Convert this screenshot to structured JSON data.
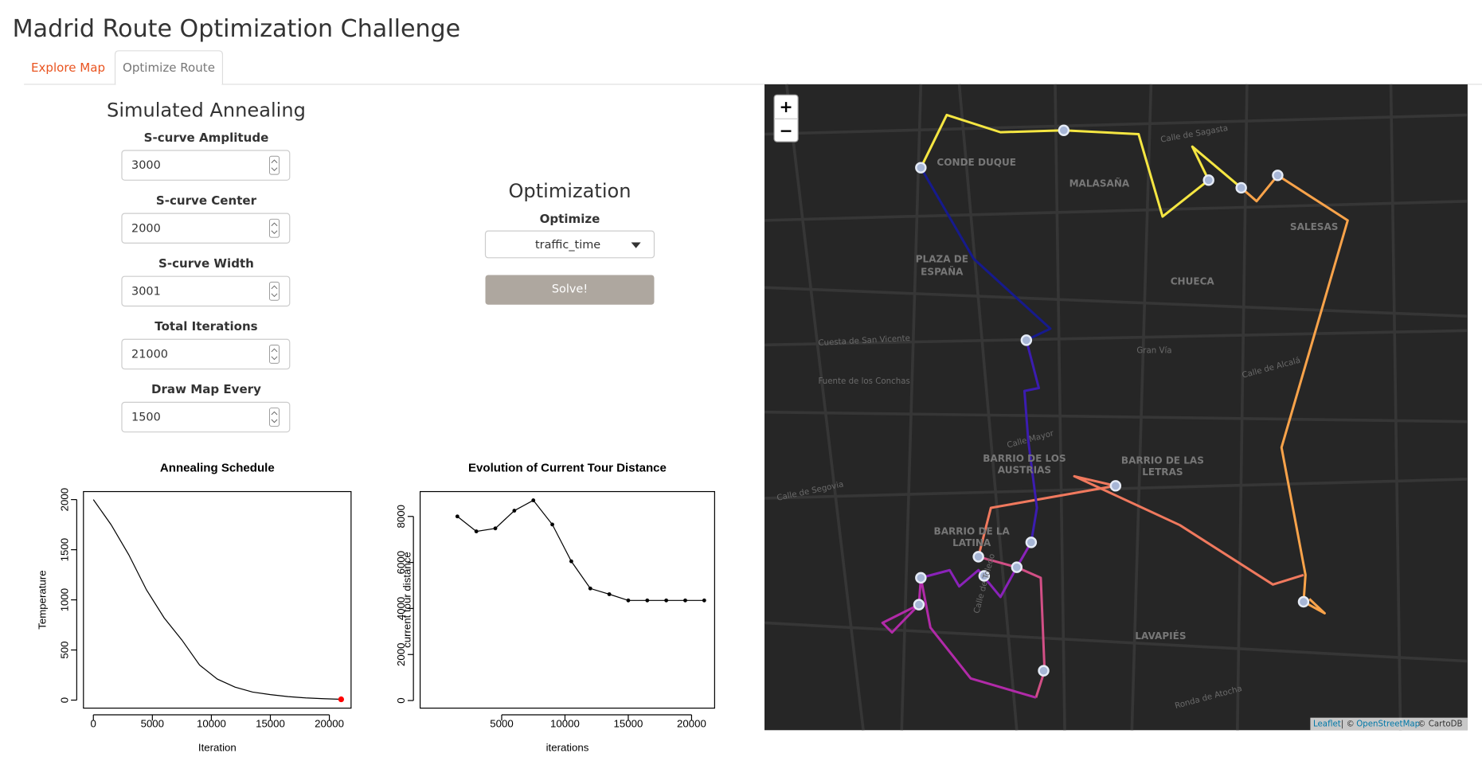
{
  "header": {
    "title": "Madrid Route Optimization Challenge"
  },
  "tabs": [
    "Explore Map",
    "Optimize Route"
  ],
  "annealing_panel": {
    "title": "Simulated Annealing",
    "fields": [
      {
        "label": "S-curve Amplitude",
        "value": "3000"
      },
      {
        "label": "S-curve Center",
        "value": "2000"
      },
      {
        "label": "S-curve Width",
        "value": "3001"
      },
      {
        "label": "Total Iterations",
        "value": "21000"
      },
      {
        "label": "Draw Map Every",
        "value": "1500"
      }
    ]
  },
  "optimization_panel": {
    "title": "Optimization",
    "select_label": "Optimize",
    "select_value": "traffic_time",
    "button": "Solve!"
  },
  "annealing_chart": {
    "type": "line",
    "title": "Annealing Schedule",
    "x_label": "Iteration",
    "y_label": "Temperature",
    "x": [
      0,
      1500,
      3000,
      4500,
      6000,
      7500,
      9000,
      10500,
      12000,
      13500,
      15000,
      16500,
      18000,
      19500,
      21000
    ],
    "values": [
      2000,
      1750,
      1450,
      1100,
      820,
      600,
      350,
      210,
      130,
      80,
      55,
      35,
      22,
      14,
      8
    ],
    "current": {
      "x": 21000,
      "value": 8,
      "color": "#ff0000"
    },
    "xlim": [
      -840,
      21840
    ],
    "ylim": [
      -80,
      2080
    ],
    "xticks": [
      0,
      5000,
      10000,
      15000,
      20000
    ],
    "yticks": [
      0,
      500,
      1000,
      1500,
      2000
    ]
  },
  "distance_chart": {
    "type": "line",
    "markers": true,
    "title": "Evolution of Current Tour Distance",
    "x_label": "iterations",
    "y_label": "current tour distance",
    "x": [
      1500,
      3000,
      4500,
      6000,
      7500,
      9000,
      10500,
      12000,
      13500,
      15000,
      16500,
      18000,
      19500,
      21000
    ],
    "values": [
      8000,
      7350,
      7480,
      8250,
      8700,
      7650,
      6050,
      4870,
      4620,
      4350,
      4350,
      4350,
      4350,
      4350
    ],
    "xlim": [
      -1440,
      21820
    ],
    "ylim": [
      -330,
      9080
    ],
    "xticks": [
      5000,
      10000,
      15000,
      20000
    ],
    "yticks": [
      0,
      2000,
      4000,
      6000,
      8000
    ]
  },
  "map": {
    "zoom_in": "+",
    "zoom_out": "−",
    "neighborhoods": [
      "CONDE DUQUE",
      "MALASAÑA",
      "SALESAS",
      "PLAZA DE",
      "ESPAÑA",
      "CHUECA",
      "BARRIO DE LOS",
      "AUSTRIAS",
      "BARRIO DE LAS",
      "LETRAS",
      "BARRIO DE LA",
      "LATINA",
      "LAVAPIÉS"
    ],
    "streets": [
      "Gran Vía",
      "Calle de Sagasta",
      "Cuesta de San Vicente",
      "Calle de Segovia",
      "Ronda de Atocha",
      "Calle de Toledo",
      "Calle Mayor",
      "Calle de Alcalá",
      "Fuente de los Conchas"
    ],
    "attribution": [
      "Leaflet",
      "| ©",
      "OpenStreetMap",
      "© CartoDB"
    ]
  }
}
